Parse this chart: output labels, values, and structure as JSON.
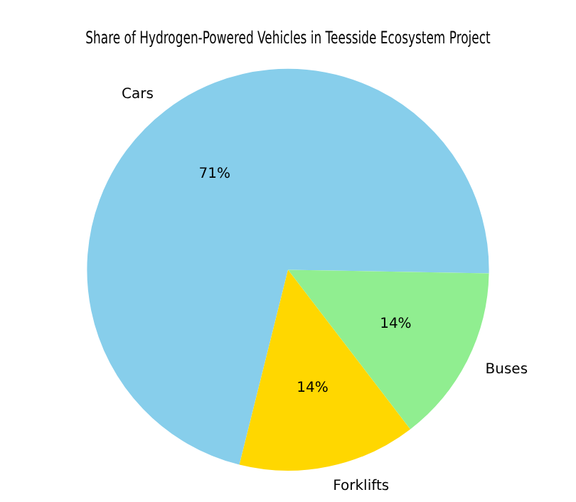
{
  "chart_data": {
    "type": "pie",
    "title": "Share of Hydrogen-Powered Vehicles in Teesside Ecosystem Project",
    "categories": [
      "Cars",
      "Buses",
      "Forklifts"
    ],
    "values": [
      71.4,
      14.3,
      14.3
    ],
    "value_labels": [
      "71%",
      "14%",
      "14%"
    ],
    "colors": [
      "#87ceeb",
      "#90ee90",
      "#ffd700"
    ],
    "legend": false
  }
}
